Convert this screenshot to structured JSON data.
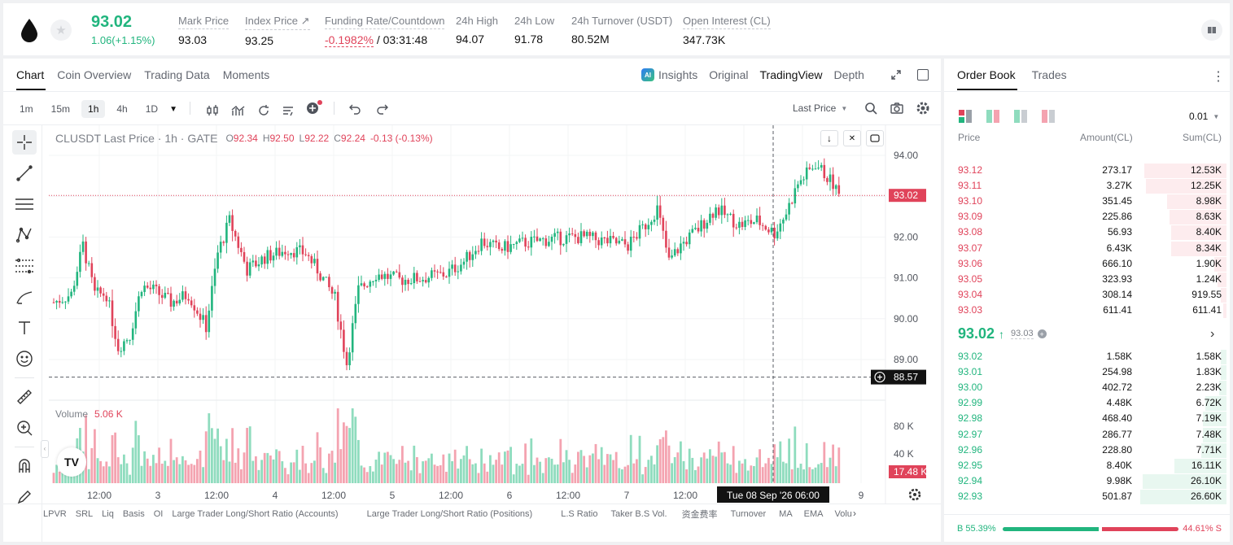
{
  "ticker": {
    "last": "93.02",
    "change": "1.06(+1.15%)"
  },
  "stats": [
    {
      "label": "Mark Price",
      "value": "93.03"
    },
    {
      "label": "Index Price ↗",
      "value": "93.25"
    },
    {
      "label": "Funding Rate/Countdown",
      "value": "-0.1982%",
      "value2": " / 03:31:48"
    },
    {
      "label": "24h High",
      "value": "94.07"
    },
    {
      "label": "24h Low",
      "value": "91.78"
    },
    {
      "label": "24h Turnover (USDT)",
      "value": "80.52M"
    },
    {
      "label": "Open Interest (CL)",
      "value": "347.73K"
    }
  ],
  "chart_tabs": [
    "Chart",
    "Coin Overview",
    "Trading Data",
    "Moments"
  ],
  "view_tabs": {
    "insights": "Insights",
    "original": "Original",
    "tradingview": "TradingView",
    "depth": "Depth"
  },
  "ai_badge": "AI",
  "timeframes": [
    "1m",
    "15m",
    "1h",
    "4h",
    "1D"
  ],
  "last_price_select": "Last Price",
  "legend": {
    "symbol": "CLUSDT Last Price · 1h · GATE",
    "o_l": "O",
    "o": "92.34",
    "h_l": "H",
    "h": "92.50",
    "l_l": "L",
    "l": "92.22",
    "c_l": "C",
    "c": "92.24",
    "chg": "-0.13 (-0.13%)"
  },
  "price_axis": [
    "94.00",
    "93.00",
    "92.00",
    "91.00",
    "90.00",
    "89.00"
  ],
  "current_price_tag": "93.02",
  "low_tag": "88.57",
  "volume": {
    "label": "Volume",
    "value": "5.06 K",
    "axis": [
      "80 K",
      "40 K"
    ],
    "tag": "17.48 K"
  },
  "time_axis": [
    "12:00",
    "3",
    "12:00",
    "4",
    "12:00",
    "5",
    "12:00",
    "6",
    "12:00",
    "7",
    "12:00",
    "9"
  ],
  "crosshair_time": "Tue 08 Sep '26   06:00",
  "indicators": [
    "LPVR",
    "SRL",
    "Liq",
    "Basis",
    "OI",
    "Large Trader Long/Short Ratio (Accounts)",
    "Large Trader Long/Short Ratio (Positions)",
    "L.S Ratio",
    "Taker B.S Vol.",
    "资金费率",
    "Turnover",
    "MA",
    "EMA",
    "Volu"
  ],
  "tv_logo": "TV",
  "orderbook": {
    "tabs": [
      "Order Book",
      "Trades"
    ],
    "precision": "0.01",
    "headers": [
      "Price",
      "Amount(CL)",
      "Sum(CL)"
    ],
    "asks": [
      {
        "price": "93.12",
        "amount": "273.17",
        "sum": "12.53K",
        "depth": 0.46
      },
      {
        "price": "93.11",
        "amount": "3.27K",
        "sum": "12.25K",
        "depth": 0.45
      },
      {
        "price": "93.10",
        "amount": "351.45",
        "sum": "8.98K",
        "depth": 0.33
      },
      {
        "price": "93.09",
        "amount": "225.86",
        "sum": "8.63K",
        "depth": 0.32
      },
      {
        "price": "93.08",
        "amount": "56.93",
        "sum": "8.40K",
        "depth": 0.31
      },
      {
        "price": "93.07",
        "amount": "6.43K",
        "sum": "8.34K",
        "depth": 0.31
      },
      {
        "price": "93.06",
        "amount": "666.10",
        "sum": "1.90K",
        "depth": 0.07
      },
      {
        "price": "93.05",
        "amount": "323.93",
        "sum": "1.24K",
        "depth": 0.05
      },
      {
        "price": "93.04",
        "amount": "308.14",
        "sum": "919.55",
        "depth": 0.03
      },
      {
        "price": "93.03",
        "amount": "611.41",
        "sum": "611.41",
        "depth": 0.02
      }
    ],
    "mid": {
      "price": "93.02",
      "arrow": "↑",
      "mark": "93.03"
    },
    "bids": [
      {
        "price": "93.02",
        "amount": "1.58K",
        "sum": "1.58K",
        "depth": 0.03
      },
      {
        "price": "93.01",
        "amount": "254.98",
        "sum": "1.83K",
        "depth": 0.03
      },
      {
        "price": "93.00",
        "amount": "402.72",
        "sum": "2.23K",
        "depth": 0.04
      },
      {
        "price": "92.99",
        "amount": "4.48K",
        "sum": "6.72K",
        "depth": 0.12
      },
      {
        "price": "92.98",
        "amount": "468.40",
        "sum": "7.19K",
        "depth": 0.13
      },
      {
        "price": "92.97",
        "amount": "286.77",
        "sum": "7.48K",
        "depth": 0.13
      },
      {
        "price": "92.96",
        "amount": "228.80",
        "sum": "7.71K",
        "depth": 0.14
      },
      {
        "price": "92.95",
        "amount": "8.40K",
        "sum": "16.11K",
        "depth": 0.29
      },
      {
        "price": "92.94",
        "amount": "9.98K",
        "sum": "26.10K",
        "depth": 0.47
      },
      {
        "price": "92.93",
        "amount": "501.87",
        "sum": "26.60K",
        "depth": 0.48
      }
    ],
    "buy_ratio": "B 55.39%",
    "sell_ratio": "44.61% S",
    "buy_fraction": 0.5539
  },
  "colors": {
    "up": "#21b57e",
    "down": "#e0435a",
    "up_vol": "#8fdcbe",
    "down_vol": "#f4a3b0"
  }
}
